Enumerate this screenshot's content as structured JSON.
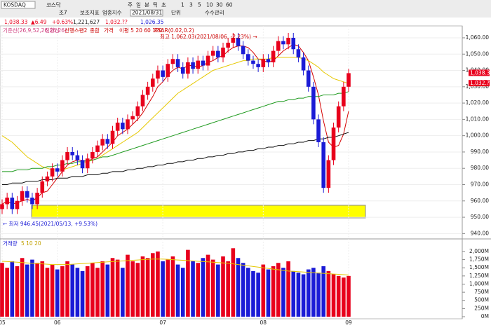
{
  "toolbar": {
    "symbol": "KOSDAQ",
    "market": "코스닥",
    "periods": [
      "주",
      "일",
      "분",
      "틱",
      "초"
    ],
    "minutes": [
      "1",
      "3",
      "5",
      "10",
      "30",
      "60"
    ],
    "tools": [
      "조7",
      "보조지표",
      "업종지수"
    ],
    "date": "2021/08/31",
    "unit": "단위",
    "manage": "수수관리"
  },
  "info": {
    "price": "1,038.33",
    "change": "▲6.49",
    "rate": "+0.63%",
    "volume": "1,221,627",
    "high": "1,032.??",
    "low": "1,026.35"
  },
  "chart_data": {
    "type": "candlestick",
    "categories": [
      "05",
      null,
      null,
      null,
      null,
      null,
      null,
      null,
      null,
      null,
      null,
      "06",
      null,
      null,
      null,
      null,
      null,
      null,
      null,
      null,
      null,
      null,
      null,
      null,
      null,
      null,
      null,
      null,
      null,
      null,
      null,
      null,
      "07",
      null,
      null,
      null,
      null,
      null,
      null,
      null,
      null,
      null,
      null,
      null,
      null,
      null,
      null,
      null,
      null,
      null,
      null,
      null,
      "08",
      null,
      null,
      null,
      null,
      null,
      null,
      null,
      null,
      null,
      null,
      null,
      null,
      null,
      null,
      null,
      null,
      "09"
    ],
    "open": [
      955,
      958,
      962,
      955,
      960,
      966,
      962,
      958,
      965,
      972,
      975,
      980,
      978,
      985,
      990,
      988,
      985,
      980,
      986,
      990,
      994,
      998,
      995,
      1003,
      1008,
      1004,
      1010,
      1012,
      1018,
      1025,
      1030,
      1035,
      1040,
      1036,
      1044,
      1047,
      1042,
      1038,
      1045,
      1041,
      1046,
      1043,
      1049,
      1052,
      1048,
      1054,
      1057,
      1060,
      1055,
      1050,
      1046,
      1044,
      1042,
      1047,
      1045,
      1052,
      1058,
      1056,
      1060,
      1053,
      1048,
      1040,
      1030,
      1010,
      996,
      968,
      985,
      1005,
      1018,
      1030
    ],
    "high": [
      961,
      965,
      965,
      963,
      969,
      969,
      965,
      968,
      975,
      978,
      983,
      983,
      988,
      993,
      993,
      991,
      988,
      989,
      993,
      997,
      1001,
      1001,
      1006,
      1011,
      1011,
      1013,
      1015,
      1021,
      1028,
      1033,
      1038,
      1043,
      1043,
      1047,
      1050,
      1050,
      1045,
      1048,
      1048,
      1049,
      1049,
      1052,
      1055,
      1055,
      1057,
      1060,
      1063,
      1063,
      1058,
      1053,
      1049,
      1047,
      1050,
      1050,
      1055,
      1061,
      1061,
      1063,
      1063,
      1056,
      1051,
      1043,
      1033,
      1013,
      999,
      988,
      1008,
      1021,
      1033,
      1041
    ],
    "low": [
      952,
      955,
      952,
      952,
      957,
      959,
      955,
      955,
      962,
      969,
      972,
      975,
      975,
      982,
      985,
      982,
      977,
      977,
      983,
      987,
      991,
      992,
      992,
      1000,
      1001,
      1001,
      1007,
      1009,
      1015,
      1022,
      1027,
      1032,
      1033,
      1033,
      1041,
      1039,
      1035,
      1035,
      1038,
      1038,
      1040,
      1040,
      1046,
      1045,
      1045,
      1051,
      1054,
      1052,
      1047,
      1043,
      1041,
      1039,
      1039,
      1042,
      1042,
      1049,
      1053,
      1053,
      1050,
      1045,
      1037,
      1027,
      1007,
      993,
      965,
      965,
      982,
      1002,
      1015,
      1027
    ],
    "close": [
      958,
      962,
      955,
      960,
      966,
      962,
      958,
      965,
      972,
      975,
      980,
      978,
      985,
      990,
      988,
      985,
      980,
      986,
      990,
      994,
      998,
      995,
      1003,
      1008,
      1004,
      1010,
      1012,
      1018,
      1025,
      1030,
      1035,
      1040,
      1036,
      1044,
      1047,
      1042,
      1038,
      1045,
      1041,
      1046,
      1043,
      1049,
      1052,
      1048,
      1054,
      1057,
      1060,
      1055,
      1050,
      1046,
      1044,
      1042,
      1047,
      1045,
      1052,
      1058,
      1056,
      1060,
      1053,
      1048,
      1040,
      1030,
      1010,
      996,
      968,
      985,
      1005,
      1018,
      1030,
      1038.33
    ],
    "up_color": "#e8001c",
    "down_color": "#1b1bd6",
    "ylim": [
      938,
      1066
    ],
    "yticks": [
      {
        "value": 940,
        "label": "940.00"
      },
      {
        "value": 950,
        "label": "950.00"
      },
      {
        "value": 960,
        "label": "960.00"
      },
      {
        "value": 970,
        "label": "970.00"
      },
      {
        "value": 980,
        "label": "980.00"
      },
      {
        "value": 990,
        "label": "990.00"
      },
      {
        "value": 1000,
        "label": "1,000.00"
      },
      {
        "value": 1010,
        "label": "1,010.00"
      },
      {
        "value": 1020,
        "label": "1,020.00"
      },
      {
        "value": 1030,
        "label": "1,030.00"
      },
      {
        "value": 1040,
        "label": "1,040.00"
      },
      {
        "value": 1050,
        "label": "1,050.00"
      },
      {
        "value": 1060,
        "label": "1,060.00"
      }
    ],
    "lines": [
      {
        "color": "#d40000",
        "values": [
          958,
          960,
          958,
          959,
          960,
          961,
          960,
          962,
          965,
          966,
          970,
          974,
          978,
          982,
          984,
          985,
          985,
          984,
          986,
          987,
          990,
          993,
          996,
          1000,
          1002,
          1004,
          1007,
          1010,
          1014,
          1019,
          1024,
          1030,
          1033,
          1037,
          1040,
          1042,
          1041,
          1043,
          1043,
          1042,
          1043,
          1045,
          1046,
          1048,
          1049,
          1052,
          1054,
          1055,
          1055,
          1054,
          1051,
          1047,
          1046,
          1045,
          1046,
          1049,
          1052,
          1054,
          1056,
          1055,
          1051,
          1046,
          1036,
          1025,
          1009,
          996,
          993,
          994,
          1001,
          1015
        ]
      },
      {
        "color": "#e6c800",
        "values": [
          1000,
          998,
          996,
          993,
          990,
          987,
          985,
          983,
          981,
          980,
          979,
          979,
          979,
          980,
          981,
          982,
          983,
          984,
          985,
          986,
          988,
          990,
          992,
          994,
          996,
          998,
          1000,
          1002,
          1005,
          1008,
          1011,
          1014,
          1017,
          1020,
          1023,
          1026,
          1028,
          1030,
          1032,
          1034,
          1036,
          1038,
          1040,
          1041,
          1042,
          1043,
          1044,
          1045,
          1046,
          1046,
          1047,
          1047,
          1047,
          1047,
          1048,
          1048,
          1048,
          1048,
          1048,
          1048,
          1047,
          1046,
          1044,
          1042,
          1039,
          1037,
          1035,
          1034,
          1033,
          1032
        ]
      },
      {
        "color": "#1e9a1e",
        "values": [
          978,
          978,
          978,
          979,
          979,
          979,
          980,
          980,
          980,
          981,
          981,
          982,
          982,
          983,
          983,
          984,
          984,
          985,
          985,
          986,
          987,
          987,
          988,
          989,
          990,
          991,
          992,
          993,
          994,
          995,
          996,
          997,
          998,
          999,
          1000,
          1001,
          1002,
          1003,
          1004,
          1005,
          1006,
          1007,
          1008,
          1009,
          1010,
          1011,
          1012,
          1013,
          1014,
          1015,
          1016,
          1017,
          1018,
          1019,
          1020,
          1021,
          1021,
          1022,
          1022,
          1023,
          1023,
          1024,
          1024,
          1024,
          1025,
          1025,
          1025,
          1026,
          1026,
          1027
        ]
      },
      {
        "color": "#111111",
        "values": [
          970,
          970,
          971,
          971,
          971,
          972,
          972,
          972,
          973,
          973,
          973,
          974,
          974,
          974,
          975,
          975,
          975,
          976,
          976,
          976,
          977,
          977,
          978,
          978,
          978,
          979,
          979,
          980,
          980,
          981,
          981,
          982,
          982,
          983,
          983,
          984,
          984,
          985,
          985,
          986,
          986,
          987,
          987,
          988,
          988,
          989,
          989,
          990,
          990,
          991,
          991,
          992,
          992,
          993,
          993,
          994,
          994,
          995,
          995,
          996,
          996,
          997,
          997,
          998,
          998,
          999,
          999,
          1000,
          1001,
          1002
        ]
      }
    ],
    "legend": [
      "기준선(26,9,52,26,26,26)",
      "전환선",
      "선행스팬2",
      "종합",
      "가격",
      "이평 5 20 60 120",
      "PSAR(0.02,0.2)"
    ],
    "annotations": {
      "max": "최고 1,062.03(2021/08/06, -2.23%) →",
      "min": "← 최저 946.45(2021/05/13, +9.53%)",
      "last": "1,038.33",
      "prev": "1,032.??"
    },
    "volume": {
      "legend": "거래량",
      "ma_legend": "5 10 20",
      "values": [
        1650,
        1500,
        1700,
        1550,
        1800,
        1600,
        1750,
        1650,
        1700,
        1500,
        1600,
        1450,
        1550,
        1700,
        1600,
        1500,
        1400,
        1550,
        1650,
        1500,
        1700,
        1600,
        1800,
        1750,
        1500,
        1900,
        1700,
        1650,
        1850,
        1800,
        1950,
        2000,
        1700,
        1750,
        1850,
        1600,
        1500,
        2050,
        1700,
        1650,
        1800,
        1900,
        1750,
        1600,
        1850,
        1700,
        2100,
        1800,
        1650,
        1500,
        1400,
        1350,
        1600,
        1450,
        1550,
        1650,
        1500,
        1700,
        1400,
        1350,
        1300,
        1450,
        1500,
        1350,
        1550,
        1400,
        1300,
        1250,
        1200,
        1250
      ],
      "ma_color": "#e6c800",
      "ma": [
        1700,
        1690,
        1680,
        1670,
        1660,
        1650,
        1640,
        1630,
        1620,
        1610,
        1600,
        1600,
        1600,
        1600,
        1610,
        1620,
        1630,
        1640,
        1650,
        1660,
        1670,
        1680,
        1690,
        1700,
        1710,
        1720,
        1730,
        1740,
        1750,
        1760,
        1770,
        1770,
        1770,
        1760,
        1750,
        1740,
        1730,
        1720,
        1710,
        1700,
        1690,
        1680,
        1670,
        1660,
        1650,
        1640,
        1620,
        1600,
        1580,
        1560,
        1540,
        1520,
        1500,
        1480,
        1460,
        1440,
        1420,
        1400,
        1390,
        1380,
        1370,
        1360,
        1350,
        1340,
        1330,
        1320,
        1310,
        1300,
        1290,
        1280
      ],
      "ylim": [
        0,
        2300
      ],
      "yticks": [
        {
          "value": 0,
          "label": "0M"
        },
        {
          "value": 250,
          "label": "250M"
        },
        {
          "value": 500,
          "label": "500M"
        },
        {
          "value": 750,
          "label": "750M"
        },
        {
          "value": 1000,
          "label": "1,000M"
        },
        {
          "value": 1250,
          "label": "1,250M"
        },
        {
          "value": 1500,
          "label": "1,500M"
        },
        {
          "value": 1750,
          "label": "1,750M"
        },
        {
          "value": 2000,
          "label": "2,000M"
        }
      ]
    }
  }
}
